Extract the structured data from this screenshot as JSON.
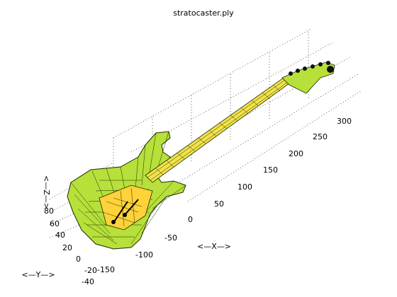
{
  "title": "stratocaster.ply",
  "axes": {
    "x_label": "<—X—>",
    "y_label": "<—Y—>",
    "z_label": "<—Z—>",
    "x_ticks": [
      "-150",
      "-100",
      "-50",
      "0",
      "50",
      "100",
      "150",
      "200",
      "250",
      "300"
    ],
    "y_ticks": [
      "80",
      "60",
      "40",
      "20",
      "0",
      "-20",
      "-40"
    ],
    "grid": true
  },
  "colors": {
    "body_fill": "#b7e03a",
    "body_mesh": "#1a2a00",
    "neck_fill": "#f2e24a",
    "pickguard": "#ffd23a",
    "background": "#ffffff",
    "grid": "#000000"
  }
}
